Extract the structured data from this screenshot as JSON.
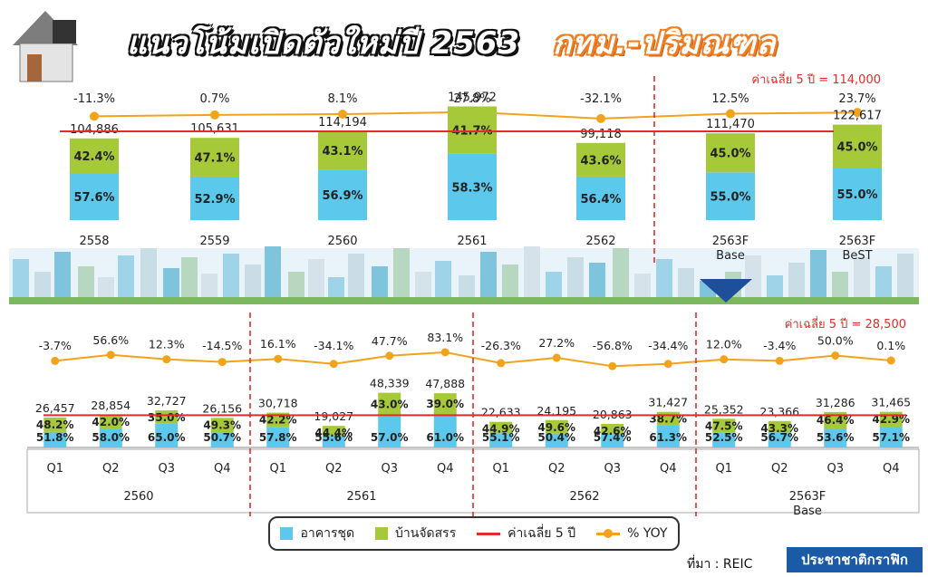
{
  "header": {
    "title_main": "แนวโน้มเปิดตัวใหม่ปี 2563",
    "title_region": "กทม.-ปริมณฑล"
  },
  "footer": {
    "source": "ที่มา : REIC",
    "brand": "ประชาชาติกราฟิก"
  },
  "colors": {
    "condo": "#5bc8ec",
    "house": "#a6c93a",
    "avg_line": "#e32b2b",
    "yoy": "#f2a31b",
    "divider": "#e32b2b"
  },
  "legend": [
    {
      "label": "อาคารชุด",
      "kind": "box",
      "color": "#5bc8ec"
    },
    {
      "label": "บ้านจัดสรร",
      "kind": "box",
      "color": "#a6c93a"
    },
    {
      "label": "ค่าเฉลี่ย 5 ปี",
      "kind": "line",
      "color": "#e32b2b"
    },
    {
      "label": "% YOY",
      "kind": "dot",
      "color": "#f2a31b"
    }
  ],
  "chart_data": [
    {
      "type": "bar",
      "stacked": true,
      "categories": [
        "2558",
        "2559",
        "2560",
        "2561",
        "2562",
        "2563F\nBase",
        "2563F\nBeST"
      ],
      "totals": [
        "104,886",
        "105,631",
        "114,194",
        "145,972",
        "99,118",
        "111,470",
        "122,617"
      ],
      "series": [
        {
          "name": "อาคารชุด",
          "color": "#5bc8ec",
          "values": [
            "57.6%",
            "52.9%",
            "56.9%",
            "58.3%",
            "56.4%",
            "55.0%",
            "55.0%"
          ]
        },
        {
          "name": "บ้านจัดสรร",
          "color": "#a6c93a",
          "values": [
            "42.4%",
            "47.1%",
            "43.1%",
            "41.7%",
            "43.6%",
            "45.0%",
            "45.0%"
          ]
        }
      ],
      "yoy": [
        "-11.3%",
        "0.7%",
        "8.1%",
        "27.8%",
        "-32.1%",
        "12.5%",
        "23.7%"
      ],
      "average_label": "ค่าเฉลี่ย 5 ปี = 114,000",
      "average": 114000
    },
    {
      "type": "bar",
      "stacked": true,
      "categories": [
        "Q1",
        "Q2",
        "Q3",
        "Q4",
        "Q1",
        "Q2",
        "Q3",
        "Q4",
        "Q1",
        "Q2",
        "Q3",
        "Q4",
        "Q1",
        "Q2",
        "Q3",
        "Q4"
      ],
      "groups": [
        "2560",
        "2561",
        "2562",
        "2563F\nBase"
      ],
      "totals": [
        "26,457",
        "28,854",
        "32,727",
        "26,156",
        "30,718",
        "19,027",
        "48,339",
        "47,888",
        "22,633",
        "24,195",
        "20,863",
        "31,427",
        "25,352",
        "23,366",
        "31,286",
        "31,465"
      ],
      "series": [
        {
          "name": "อาคารชุด",
          "color": "#5bc8ec",
          "values": [
            "51.8%",
            "58.0%",
            "65.0%",
            "50.7%",
            "57.8%",
            "55.6%",
            "57.0%",
            "61.0%",
            "55.1%",
            "50.4%",
            "57.4%",
            "61.3%",
            "52.5%",
            "56.7%",
            "53.6%",
            "57.1%"
          ]
        },
        {
          "name": "บ้านจัดสรร",
          "color": "#a6c93a",
          "values": [
            "48.2%",
            "42.0%",
            "35.0%",
            "49.3%",
            "42.2%",
            "44.4%",
            "43.0%",
            "39.0%",
            "44.9%",
            "49.6%",
            "42.6%",
            "38.7%",
            "47.5%",
            "43.3%",
            "46.4%",
            "42.9%"
          ]
        }
      ],
      "yoy": [
        "-3.7%",
        "56.6%",
        "12.3%",
        "-14.5%",
        "16.1%",
        "-34.1%",
        "47.7%",
        "83.1%",
        "-26.3%",
        "27.2%",
        "-56.8%",
        "-34.4%",
        "12.0%",
        "-3.4%",
        "50.0%",
        "0.1%"
      ],
      "average_label": "ค่าเฉลี่ย 5 ปี = 28,500",
      "average": 28500
    }
  ]
}
